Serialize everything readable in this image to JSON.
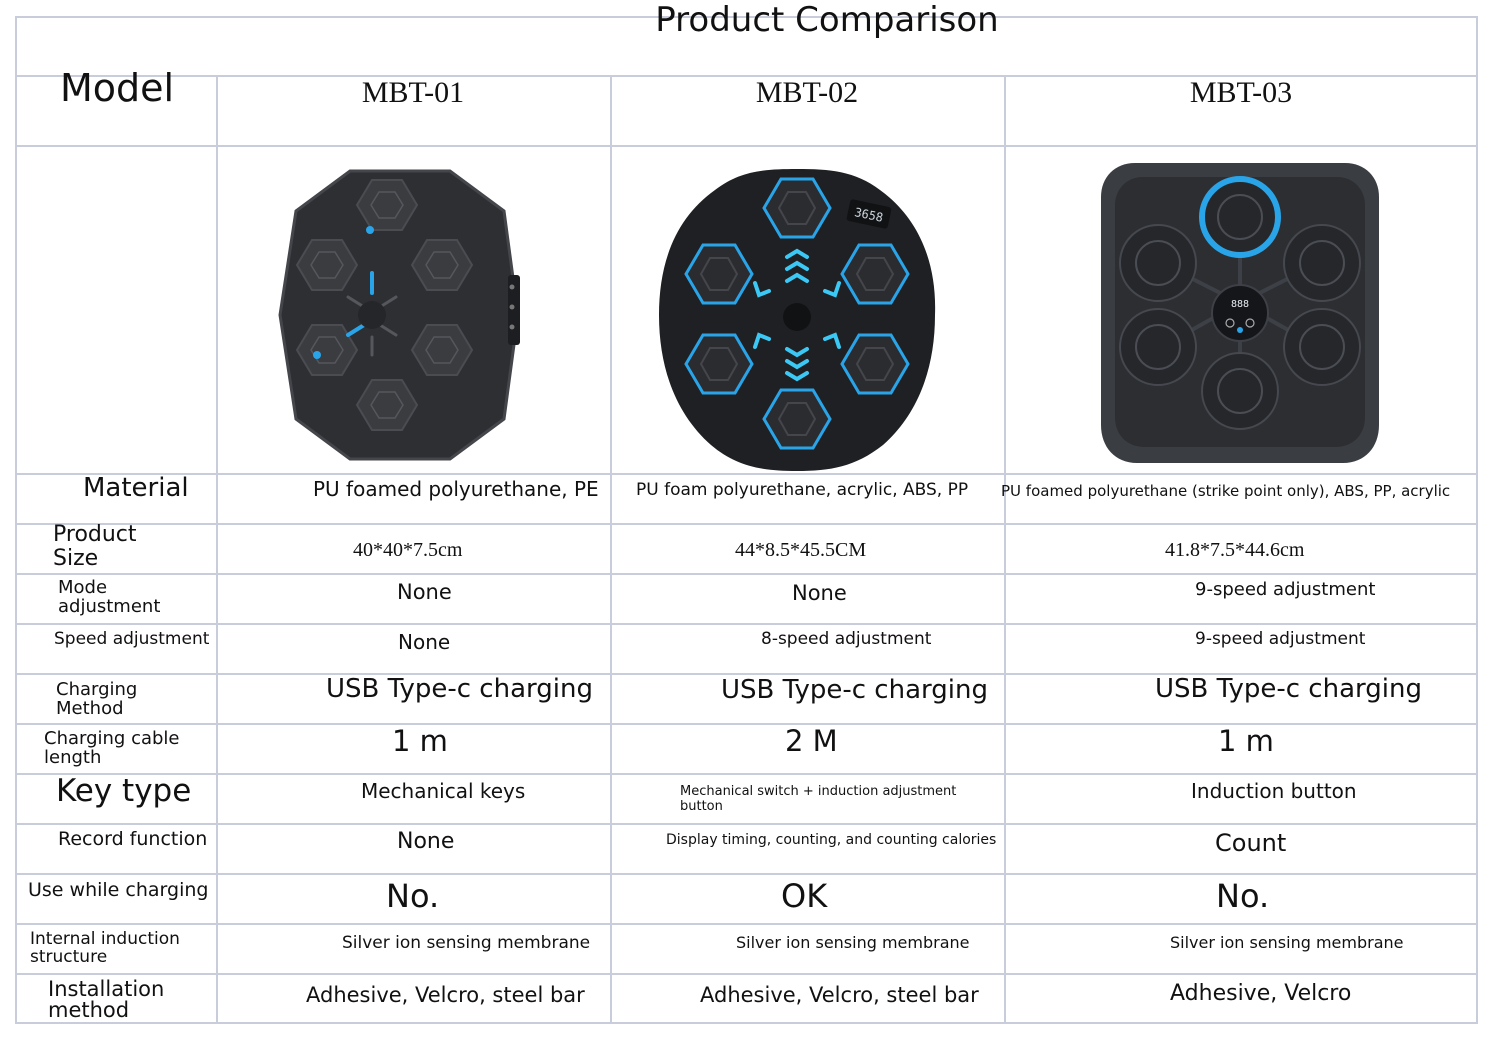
{
  "title": "Product Comparison",
  "header": {
    "label": "Model",
    "models": [
      "MBT-01",
      "MBT-02",
      "MBT-03"
    ]
  },
  "rows": [
    {
      "label": "Material",
      "values": [
        "PU foamed polyurethane, PE",
        "PU foam polyurethane, acrylic, ABS, PP",
        "PU foamed polyurethane (strike point only), ABS, PP, acrylic"
      ]
    },
    {
      "label_lines": [
        "Product",
        "Size"
      ],
      "values": [
        "40*40*7.5cm",
        "44*8.5*45.5CM",
        "41.8*7.5*44.6cm"
      ]
    },
    {
      "label_lines": [
        "Mode",
        "adjustment"
      ],
      "values": [
        "None",
        "None",
        "9-speed adjustment"
      ]
    },
    {
      "label": "Speed adjustment",
      "values": [
        "None",
        "8-speed adjustment",
        "9-speed adjustment"
      ]
    },
    {
      "label_lines": [
        "Charging",
        "Method"
      ],
      "values": [
        "USB Type-c charging",
        "USB Type-c charging",
        "USB Type-c charging"
      ]
    },
    {
      "label_lines": [
        "Charging cable",
        "length"
      ],
      "values": [
        "1 m",
        "2 M",
        "1 m"
      ]
    },
    {
      "label": "Key type",
      "values": [
        "Mechanical keys",
        "Mechanical switch + induction adjustment button",
        "Induction button"
      ]
    },
    {
      "label": "Record function",
      "values": [
        "None",
        "Display timing, counting, and counting calories",
        "Count"
      ]
    },
    {
      "label": "Use while charging",
      "values": [
        "No.",
        "OK",
        "No."
      ]
    },
    {
      "label_lines": [
        "Internal induction",
        "structure"
      ],
      "values": [
        "Silver ion sensing membrane",
        "Silver ion sensing membrane",
        "Silver ion sensing membrane"
      ]
    },
    {
      "label_lines": [
        "Installation",
        "method"
      ],
      "values": [
        "Adhesive, Velcro, steel bar",
        "Adhesive, Velcro, steel bar",
        "Adhesive, Velcro"
      ]
    }
  ],
  "product_images": {
    "mbt01": {
      "display": ""
    },
    "mbt02": {
      "display": "3658"
    },
    "mbt03": {
      "display": "888"
    }
  },
  "colors": {
    "grid": "#c9ccdb",
    "accent": "#2aa4e8",
    "device": "#2e2f33"
  }
}
